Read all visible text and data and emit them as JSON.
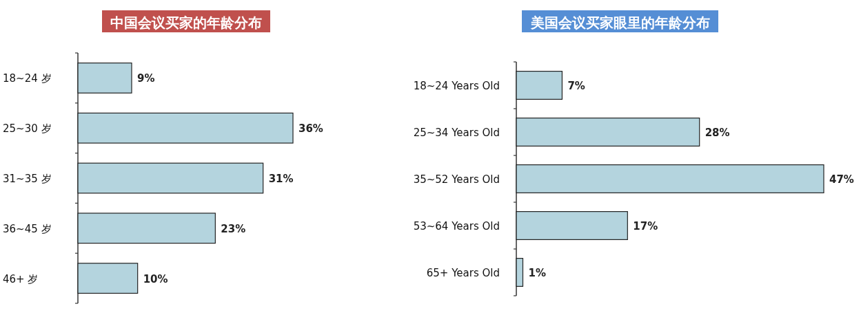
{
  "chart_data": [
    {
      "type": "bar",
      "orientation": "horizontal",
      "title": "中国会议买家的年龄分布",
      "categories": [
        "18~24 岁",
        "25~30 岁",
        "31~35 岁",
        "36~45 岁",
        "46+ 岁"
      ],
      "values": [
        9,
        36,
        31,
        23,
        10
      ],
      "value_labels": [
        "9%",
        "36%",
        "31%",
        "23%",
        "10%"
      ],
      "color": "#b4d4de"
    },
    {
      "type": "bar",
      "orientation": "horizontal",
      "title": "美国会议买家眼里的年龄分布",
      "categories": [
        "18~24 Years Old",
        "25~34 Years Old",
        "35~52 Years Old",
        "53~64 Years Old",
        "65+ Years Old"
      ],
      "values": [
        7,
        28,
        47,
        17,
        1
      ],
      "value_labels": [
        "7%",
        "28%",
        "47%",
        "17%",
        "1%"
      ],
      "color": "#b4d4de"
    }
  ]
}
